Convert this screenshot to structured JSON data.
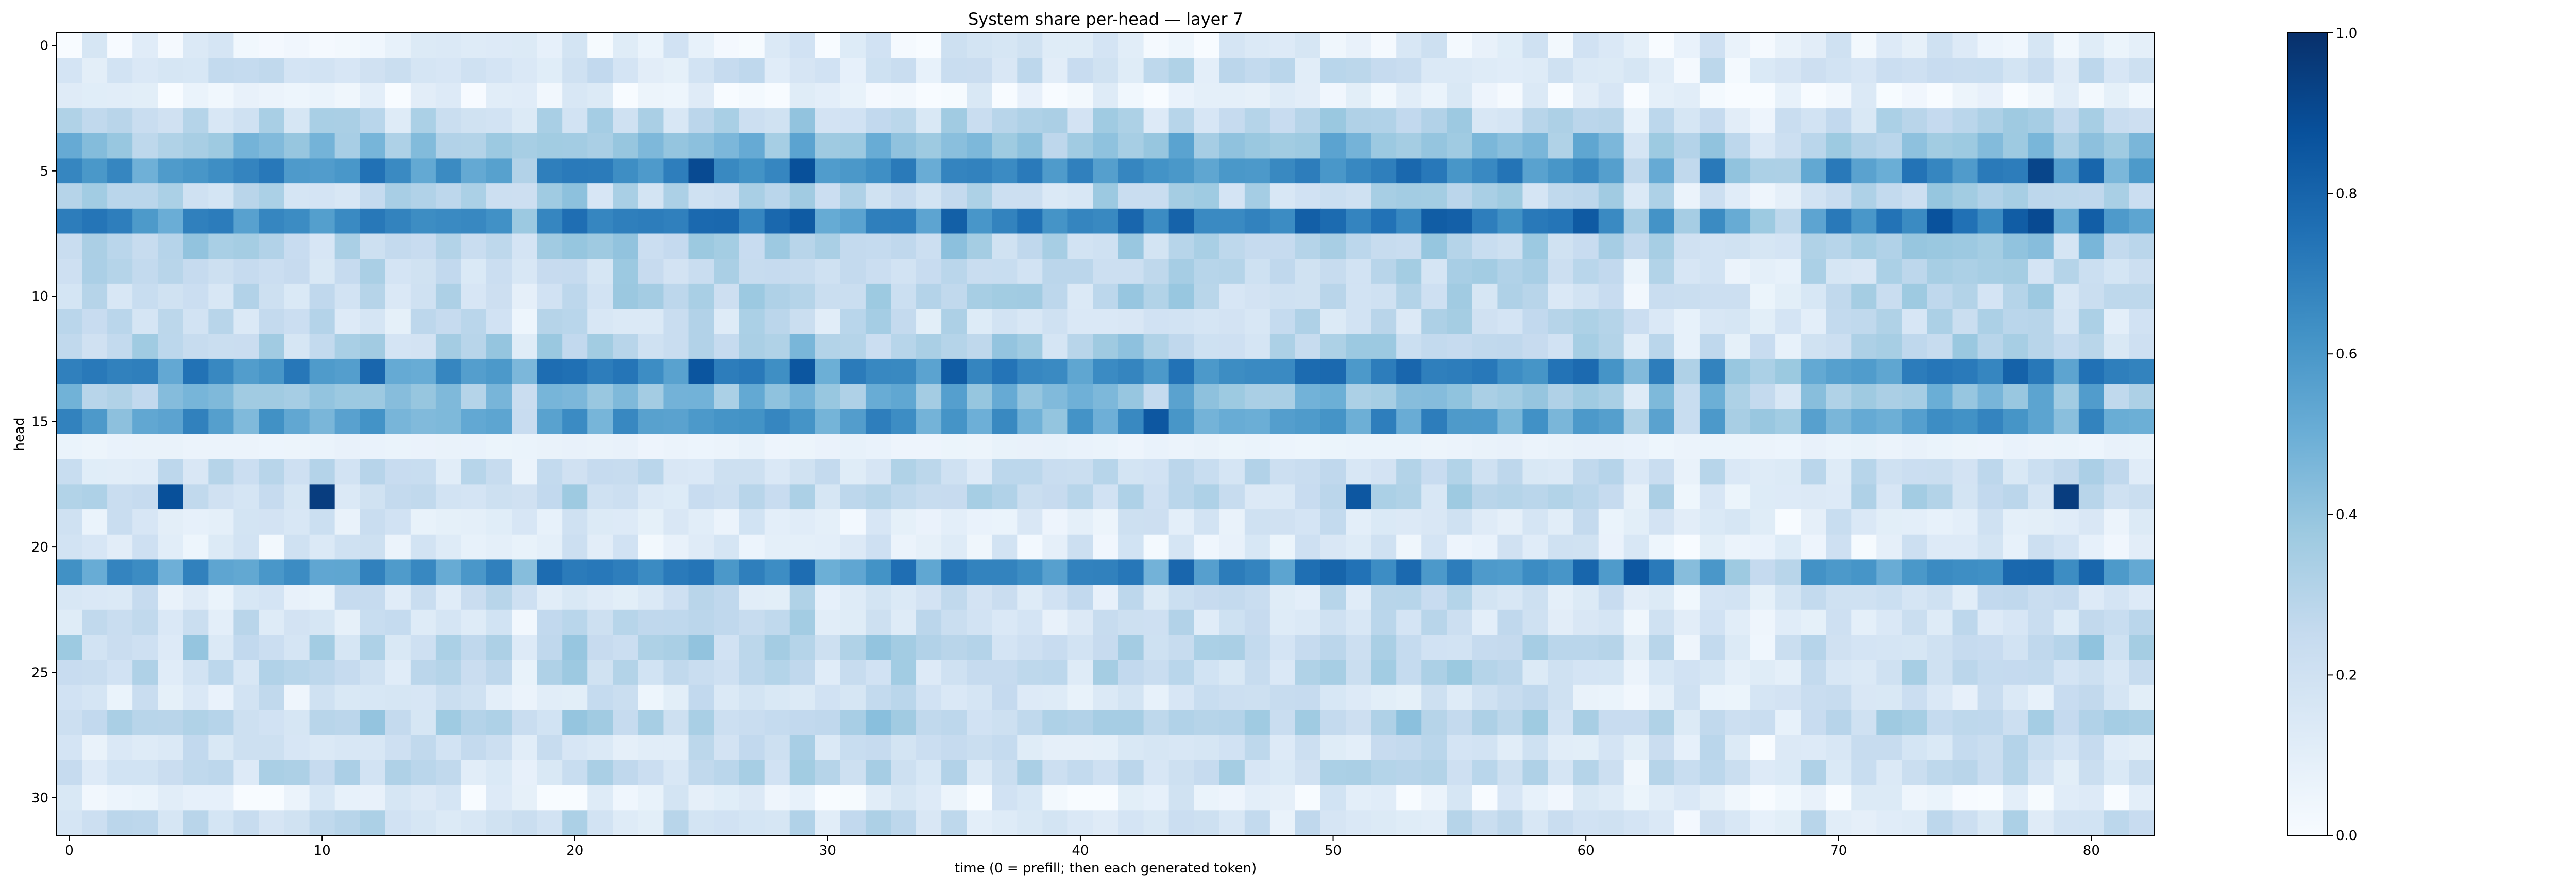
{
  "chart_data": {
    "type": "heatmap",
    "title": "System share per-head — layer 7",
    "xlabel": "time (0 = prefill; then each generated token)",
    "ylabel": "head",
    "x_count": 83,
    "y_count": 32,
    "x_ticks": [
      0,
      10,
      20,
      30,
      40,
      50,
      60,
      70,
      80
    ],
    "y_ticks": [
      0,
      5,
      10,
      15,
      20,
      25,
      30
    ],
    "colorbar": {
      "min": 0.0,
      "max": 1.0,
      "ticks": [
        "0.0",
        "0.2",
        "0.4",
        "0.6",
        "0.8",
        "1.0"
      ],
      "cmap": "Blues"
    },
    "colors": {
      "low": "#f7fbff",
      "high": "#08306b"
    },
    "row_base": [
      0.1,
      0.2,
      0.05,
      0.25,
      0.4,
      0.62,
      0.27,
      0.68,
      0.28,
      0.25,
      0.26,
      0.22,
      0.28,
      0.66,
      0.4,
      0.55,
      0.06,
      0.22,
      0.24,
      0.14,
      0.12,
      0.63,
      0.18,
      0.2,
      0.26,
      0.24,
      0.16,
      0.28,
      0.18,
      0.24,
      0.08,
      0.2
    ],
    "notable_cells": [
      {
        "head": 18,
        "t": 10,
        "v": 0.95
      },
      {
        "head": 18,
        "t": 79,
        "v": 0.95
      },
      {
        "head": 5,
        "t": 25,
        "v": 0.9
      },
      {
        "head": 5,
        "t": 78,
        "v": 0.92
      },
      {
        "head": 7,
        "t": 78,
        "v": 0.9
      },
      {
        "head": 15,
        "t": 43,
        "v": 0.85
      },
      {
        "head": 18,
        "t": 4,
        "v": 0.88
      },
      {
        "head": 18,
        "t": 51,
        "v": 0.85
      },
      {
        "head": 21,
        "t": 62,
        "v": 0.85
      }
    ]
  }
}
